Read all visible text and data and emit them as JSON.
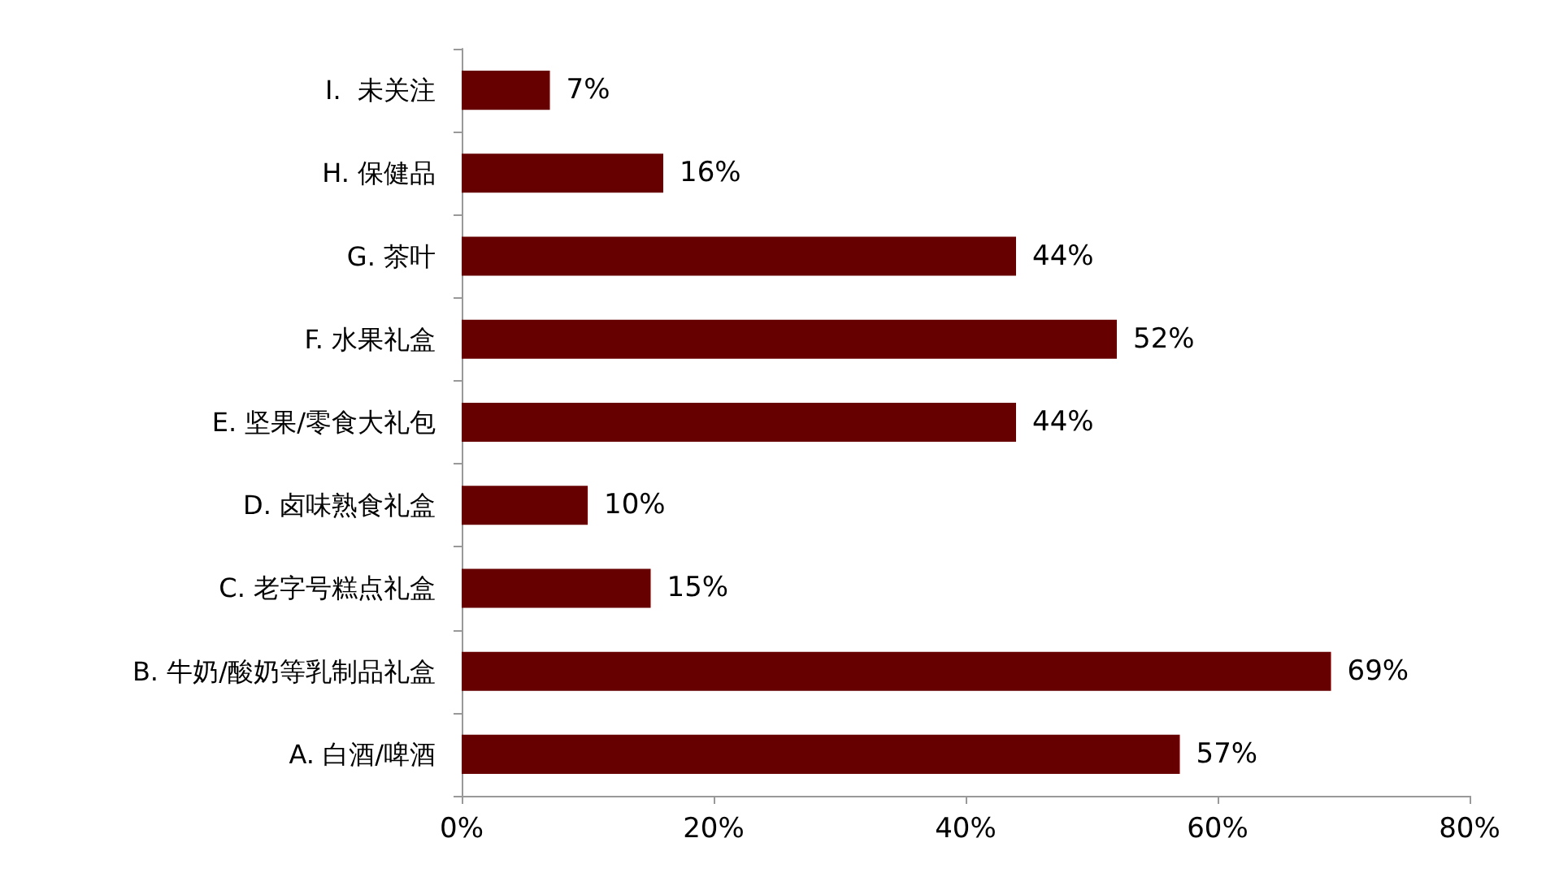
{
  "chart_data": {
    "type": "bar",
    "orientation": "horizontal",
    "categories": [
      "I.  未关注",
      "H. 保健品",
      "G. 茶叶",
      "F. 水果礼盒",
      "E. 坚果/零食大礼包",
      "D. 卤味熟食礼盒",
      "C. 老字号糕点礼盒",
      "B. 牛奶/酸奶等乳制品礼盒",
      "A. 白酒/啤酒"
    ],
    "values": [
      7,
      16,
      44,
      52,
      44,
      10,
      15,
      69,
      57
    ],
    "value_labels": [
      "7%",
      "16%",
      "44%",
      "52%",
      "44%",
      "10%",
      "15%",
      "69%",
      "57%"
    ],
    "color": "#660000",
    "xlim": [
      0,
      80
    ],
    "xticks": [
      {
        "value": 0,
        "label": "0%"
      },
      {
        "value": 20,
        "label": "20%"
      },
      {
        "value": 40,
        "label": "40%"
      },
      {
        "value": 60,
        "label": "60%"
      },
      {
        "value": 80,
        "label": "80%"
      }
    ],
    "grid": false
  }
}
